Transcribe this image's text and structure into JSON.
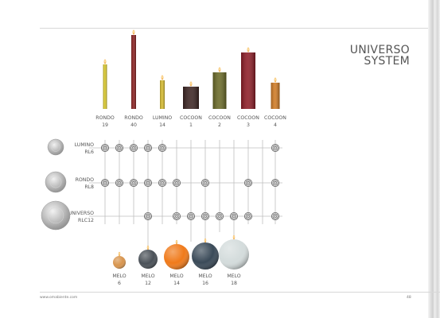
{
  "title": {
    "line1": "UNIVERSO",
    "line2": "SYSTEM"
  },
  "candles": [
    {
      "name": "RONDO",
      "size": "19",
      "color": "#d9c82a"
    },
    {
      "name": "RONDO",
      "size": "40",
      "color": "#8a1f1f"
    },
    {
      "name": "LUMINO",
      "size": "14",
      "color": "#d6bb2e"
    },
    {
      "name": "COCOON",
      "size": "1",
      "color": "#3c2422"
    },
    {
      "name": "COCOON",
      "size": "2",
      "color": "#6a6a26"
    },
    {
      "name": "COCOON",
      "size": "3",
      "color": "#8e1c26"
    },
    {
      "name": "COCOON",
      "size": "4",
      "color": "#d07a22"
    }
  ],
  "holders": [
    {
      "name": "LUMINO",
      "code": "RL6"
    },
    {
      "name": "RONDO",
      "code": "RL8"
    },
    {
      "name": "UNIVERSO",
      "code": "RLC12"
    }
  ],
  "melo": [
    {
      "name": "MELO",
      "size": "6",
      "color": "#d8954e"
    },
    {
      "name": "MELO",
      "size": "12",
      "color": "#4a5158"
    },
    {
      "name": "MELO",
      "size": "14",
      "color": "#f07a1a"
    },
    {
      "name": "MELO",
      "size": "16",
      "color": "#3a4a58"
    },
    {
      "name": "MELO",
      "size": "18",
      "color": "#d4dcdc"
    }
  ],
  "footer": {
    "url": "www.omabiente.com",
    "page_number": "48"
  }
}
